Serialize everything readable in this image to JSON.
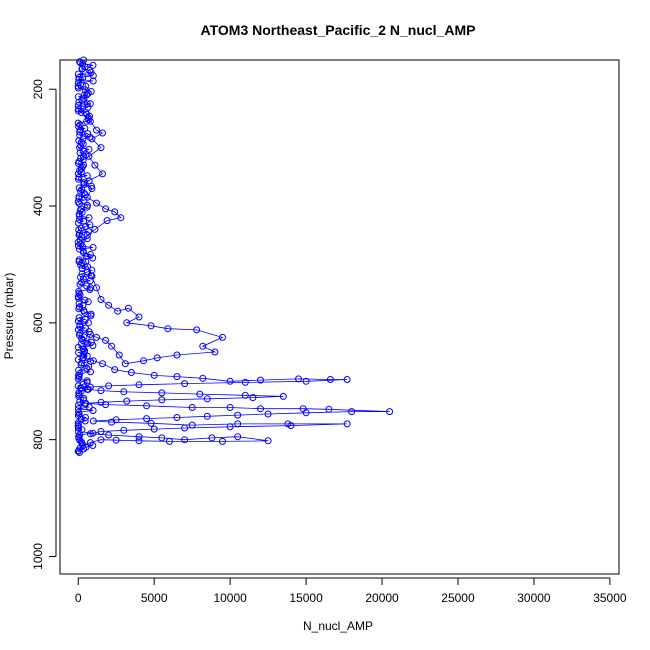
{
  "chart_data": {
    "type": "scatter",
    "title": "ATOM3 Northeast_Pacific_2 N_nucl_AMP",
    "xlabel": "N_nucl_AMP",
    "ylabel": "Pressure (mbar)",
    "xlim": [
      -1200,
      35600
    ],
    "ylim": [
      1030,
      150
    ],
    "y_reversed": true,
    "grid": false,
    "legend": "none",
    "x_ticks": [
      0,
      5000,
      10000,
      15000,
      20000,
      25000,
      30000,
      35000
    ],
    "y_ticks": [
      200,
      400,
      600,
      800,
      1000
    ],
    "colors": {
      "series": "#0000ff",
      "axis": "#000000"
    },
    "marker": "open-circle",
    "connect_points": true,
    "points": [
      [
        150,
        155
      ],
      [
        250,
        165
      ],
      [
        300,
        180
      ],
      [
        500,
        195
      ],
      [
        400,
        210
      ],
      [
        600,
        225
      ],
      [
        200,
        240
      ],
      [
        800,
        255
      ],
      [
        1200,
        270
      ],
      [
        1600,
        275
      ],
      [
        900,
        285
      ],
      [
        1500,
        300
      ],
      [
        700,
        315
      ],
      [
        1100,
        330
      ],
      [
        1600,
        345
      ],
      [
        400,
        360
      ],
      [
        900,
        370
      ],
      [
        600,
        385
      ],
      [
        1200,
        395
      ],
      [
        1800,
        405
      ],
      [
        2400,
        410
      ],
      [
        2800,
        420
      ],
      [
        1900,
        425
      ],
      [
        1100,
        440
      ],
      [
        600,
        450
      ],
      [
        300,
        470
      ],
      [
        500,
        495
      ],
      [
        900,
        520
      ],
      [
        1200,
        540
      ],
      [
        1500,
        560
      ],
      [
        2000,
        570
      ],
      [
        2600,
        580
      ],
      [
        3300,
        575
      ],
      [
        4000,
        590
      ],
      [
        3200,
        600
      ],
      [
        4800,
        605
      ],
      [
        5900,
        610
      ],
      [
        7800,
        612
      ],
      [
        9500,
        625
      ],
      [
        8200,
        640
      ],
      [
        9000,
        650
      ],
      [
        6500,
        655
      ],
      [
        5200,
        660
      ],
      [
        4300,
        665
      ],
      [
        3100,
        670
      ],
      [
        2700,
        655
      ],
      [
        2200,
        640
      ],
      [
        1800,
        630
      ],
      [
        1200,
        625
      ],
      [
        800,
        620
      ],
      [
        600,
        635
      ],
      [
        400,
        650
      ],
      [
        300,
        660
      ],
      [
        1000,
        665
      ],
      [
        1600,
        670
      ],
      [
        2400,
        680
      ],
      [
        3500,
        685
      ],
      [
        5000,
        690
      ],
      [
        6500,
        692
      ],
      [
        8200,
        695
      ],
      [
        10000,
        700
      ],
      [
        12000,
        698
      ],
      [
        14500,
        696
      ],
      [
        16600,
        697
      ],
      [
        17700,
        697
      ],
      [
        15000,
        700
      ],
      [
        11000,
        702
      ],
      [
        7000,
        704
      ],
      [
        4000,
        706
      ],
      [
        2000,
        708
      ],
      [
        800,
        710
      ],
      [
        200,
        712
      ],
      [
        600,
        714
      ],
      [
        1500,
        716
      ],
      [
        3000,
        718
      ],
      [
        5500,
        720
      ],
      [
        8000,
        722
      ],
      [
        11000,
        724
      ],
      [
        13500,
        726
      ],
      [
        11500,
        728
      ],
      [
        8500,
        730
      ],
      [
        5500,
        732
      ],
      [
        3200,
        734
      ],
      [
        1500,
        736
      ],
      [
        500,
        738
      ],
      [
        1800,
        740
      ],
      [
        4500,
        742
      ],
      [
        7500,
        745
      ],
      [
        10000,
        745
      ],
      [
        12000,
        747
      ],
      [
        14800,
        747
      ],
      [
        16500,
        748
      ],
      [
        20500,
        752
      ],
      [
        18000,
        752
      ],
      [
        15000,
        754
      ],
      [
        12500,
        756
      ],
      [
        10500,
        758
      ],
      [
        8500,
        760
      ],
      [
        6500,
        762
      ],
      [
        4500,
        764
      ],
      [
        2500,
        766
      ],
      [
        1000,
        768
      ],
      [
        2200,
        770
      ],
      [
        4800,
        772
      ],
      [
        7500,
        775
      ],
      [
        10500,
        773
      ],
      [
        13800,
        773
      ],
      [
        17700,
        773
      ],
      [
        14000,
        776
      ],
      [
        10000,
        778
      ],
      [
        7000,
        780
      ],
      [
        5000,
        782
      ],
      [
        3000,
        784
      ],
      [
        1500,
        786
      ],
      [
        800,
        790
      ],
      [
        2000,
        792
      ],
      [
        4000,
        795
      ],
      [
        5500,
        797
      ],
      [
        7000,
        800
      ],
      [
        8800,
        797
      ],
      [
        10500,
        795
      ],
      [
        12500,
        802
      ],
      [
        9500,
        803
      ],
      [
        6000,
        803
      ],
      [
        4000,
        802
      ],
      [
        2500,
        801
      ],
      [
        1500,
        800
      ],
      [
        800,
        805
      ],
      [
        300,
        810
      ],
      [
        100,
        815
      ],
      [
        0,
        820
      ]
    ],
    "near_axis_band": {
      "pressure_range": [
        150,
        823
      ],
      "x_range": [
        0,
        1000
      ]
    }
  }
}
